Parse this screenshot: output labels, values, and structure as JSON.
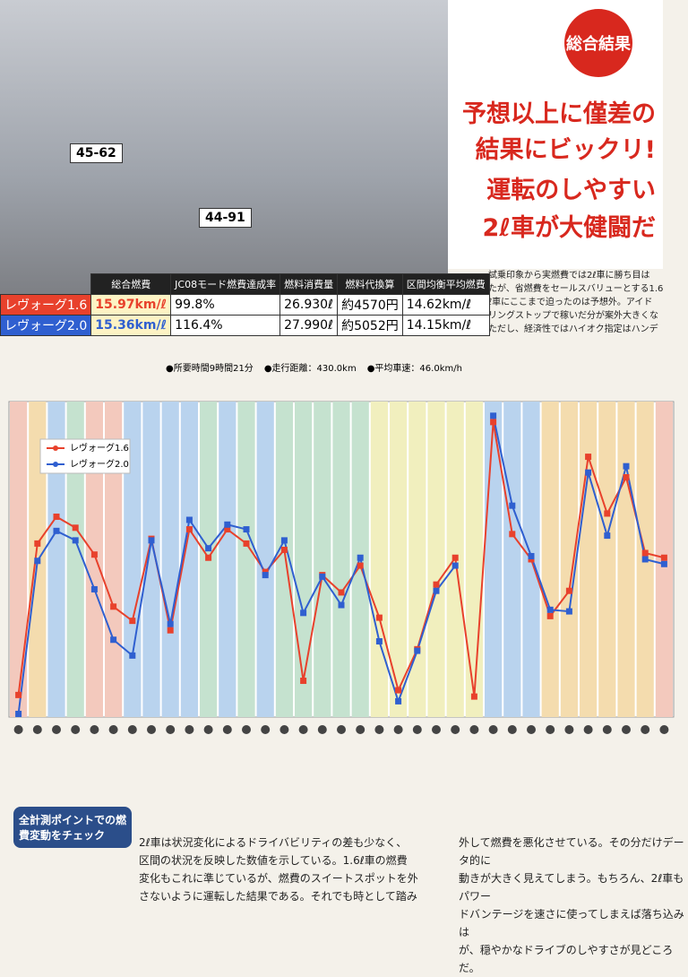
{
  "photo": {
    "plate_left": "45-62",
    "plate_right": "44-91"
  },
  "headline": {
    "badge": "総合結果",
    "lines": [
      "予想以上に僅差の",
      "結果にビックリ!",
      "運転のしやすい",
      "2ℓ車が大健闘だ"
    ]
  },
  "side_text": [
    "試乗印象から実燃費では2ℓ車に勝ち目は",
    "たが、省燃費をセールスバリューとする1.6",
    "ℓ車にここまで迫ったのは予想外。アイド",
    "リングストップで稼いだ分が案外大きくな",
    "ただし、経済性ではハイオク指定はハンデ"
  ],
  "table": {
    "headers": [
      "総合燃費",
      "JC08モード燃費達成率",
      "燃料消費量",
      "燃料代換算",
      "区間均衡平均燃費"
    ],
    "rows": [
      [
        "レヴォーグ1.6",
        "15.97km/ℓ",
        "99.8%",
        "26.930ℓ",
        "約4570円",
        "14.62km/ℓ"
      ],
      [
        "レヴォーグ2.0",
        "15.36km/ℓ",
        "116.4%",
        "27.990ℓ",
        "約5052円",
        "14.15km/ℓ"
      ]
    ],
    "notes": [
      "●所要時間9時間21分",
      "●走行距離：430.0km",
      "●平均車速：46.0km/h"
    ]
  },
  "chart_data": {
    "type": "line",
    "ylim": [
      5,
      25
    ],
    "categories": [
      null,
      null,
      null,
      null,
      null,
      null,
      null,
      null,
      null,
      null,
      null,
      null,
      null,
      null,
      null,
      null,
      null,
      null,
      null,
      null,
      null,
      null,
      null,
      null,
      null,
      null,
      null,
      null,
      null,
      null,
      null,
      null,
      null,
      null,
      null
    ],
    "series": [
      {
        "name": "レヴォーグ1.6",
        "color": "#e8412c",
        "values": [
          6.4,
          16.0,
          17.7,
          17.0,
          15.3,
          12.0,
          11.1,
          16.3,
          10.5,
          16.9,
          15.1,
          16.9,
          16.0,
          14.2,
          15.6,
          7.3,
          14.0,
          12.9,
          14.6,
          11.3,
          6.7,
          9.3,
          13.4,
          15.1,
          6.3,
          23.7,
          16.6,
          15.0,
          11.4,
          13.0,
          21.5,
          17.9,
          20.2,
          15.4,
          15.1
        ]
      },
      {
        "name": "レヴォーグ2.0",
        "color": "#2f5fd0",
        "values": [
          5.2,
          14.9,
          16.8,
          16.2,
          13.1,
          9.9,
          8.9,
          16.2,
          10.9,
          17.5,
          15.7,
          17.2,
          16.9,
          14.0,
          16.2,
          11.6,
          13.9,
          12.1,
          15.1,
          9.8,
          6.0,
          9.2,
          13.0,
          14.6,
          null,
          24.1,
          18.4,
          15.2,
          11.8,
          11.7,
          20.5,
          16.5,
          20.9,
          15.0,
          14.7
        ]
      }
    ]
  },
  "bottom": {
    "box": "全計測ポイントでの燃費変動をチェック",
    "left": [
      "2ℓ車は状況変化によるドライバビリティの差も少なく、",
      "区間の状況を反映した数値を示している。1.6ℓ車の燃費",
      "変化もこれに準じているが、燃費のスイートスポットを外",
      "さないように運転した結果である。それでも時として踏み"
    ],
    "right": [
      "外して燃費を悪化させている。その分だけデータ的に",
      "動きが大きく見えてしまう。もちろん、2ℓ車もパワー",
      "ドバンテージを速さに使ってしまえば落ち込みは",
      "が、穏やかなドライブのしやすさが見どころだ。"
    ]
  }
}
